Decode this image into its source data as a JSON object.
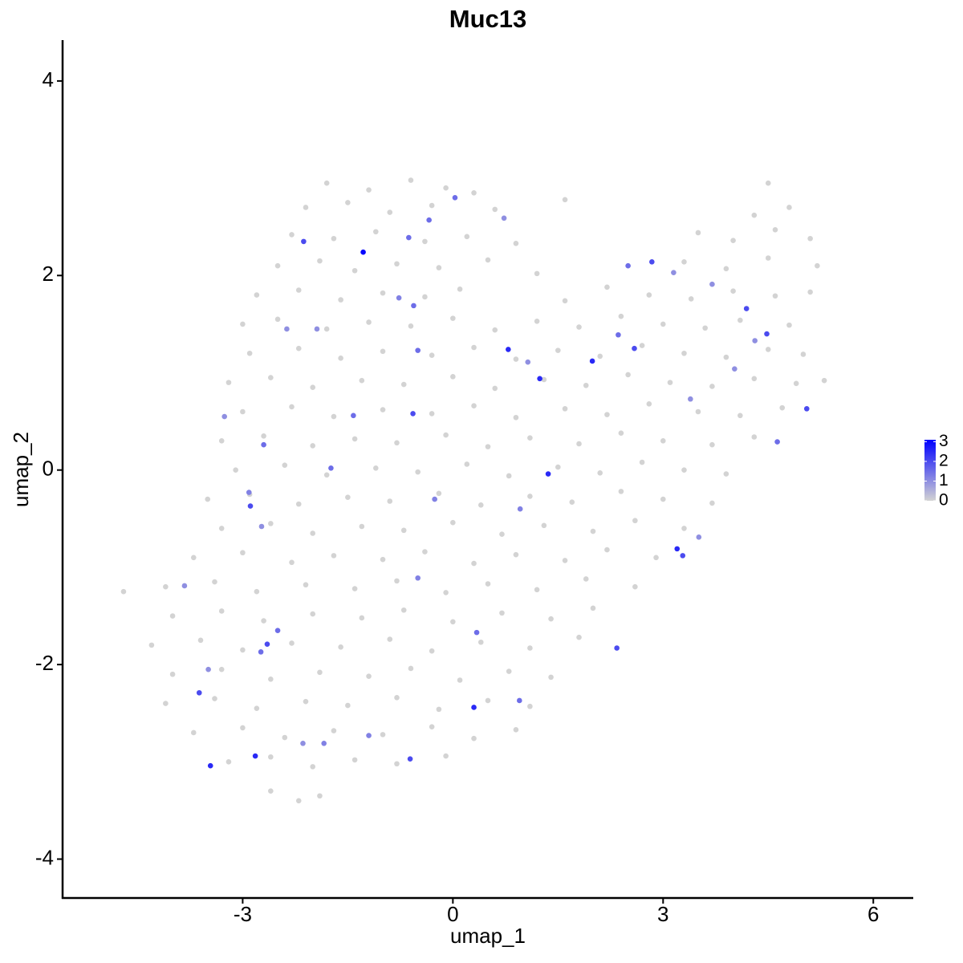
{
  "chart_data": {
    "type": "scatter",
    "title": "Muc13",
    "x_label": "umap_1",
    "y_label": "umap_2",
    "xlim": [
      -5.57,
      6.57
    ],
    "ylim": [
      -4.4,
      4.42
    ],
    "xticks": [
      -3,
      0,
      3,
      6
    ],
    "yticks": [
      -4,
      -2,
      0,
      2,
      4
    ],
    "color_low": "#d3d3d3",
    "color_high": "#0000ff",
    "color_lim": [
      0,
      3.1
    ],
    "colorbar_ticks": [
      0,
      1,
      2,
      3
    ],
    "x": [
      -1.8,
      -1.2,
      -0.6,
      -0.1,
      0.3,
      4.5,
      -2.1,
      -1.5,
      -0.9,
      -0.3,
      0.6,
      1.6,
      4.3,
      4.8,
      -2.3,
      -1.7,
      -1.1,
      -0.4,
      0.2,
      0.9,
      3.5,
      4.0,
      4.6,
      5.1,
      -2.5,
      -1.9,
      -1.4,
      -0.8,
      -0.2,
      0.5,
      1.2,
      3.3,
      3.9,
      4.5,
      5.2,
      -2.8,
      -2.2,
      -1.6,
      -1.0,
      -0.4,
      0.1,
      1.6,
      2.2,
      2.8,
      3.4,
      4.0,
      4.6,
      5.1,
      -3.0,
      -2.5,
      -1.8,
      -1.2,
      -0.6,
      0.0,
      0.6,
      1.2,
      1.8,
      2.4,
      3.0,
      3.6,
      4.1,
      4.8,
      -2.9,
      -2.2,
      -1.6,
      -1.0,
      -0.3,
      0.3,
      0.9,
      1.5,
      2.1,
      2.7,
      3.3,
      3.9,
      4.5,
      5.0,
      -3.2,
      -2.6,
      -2.0,
      -1.3,
      -0.7,
      0.0,
      0.6,
      1.3,
      1.9,
      2.5,
      3.1,
      3.7,
      4.3,
      4.9,
      5.3,
      -3.0,
      -2.3,
      -1.7,
      -1.0,
      -0.3,
      0.3,
      0.9,
      1.6,
      2.2,
      2.8,
      3.5,
      4.1,
      4.7,
      -3.3,
      -2.7,
      -2.0,
      -1.4,
      -0.8,
      -0.1,
      0.5,
      1.1,
      1.8,
      2.4,
      3.0,
      3.7,
      4.3,
      -3.1,
      -2.4,
      -1.8,
      -1.1,
      -0.5,
      0.2,
      0.8,
      1.5,
      2.1,
      2.7,
      3.3,
      3.9,
      -3.5,
      -2.9,
      -2.2,
      -1.5,
      -0.9,
      -0.2,
      0.4,
      1.1,
      1.7,
      2.4,
      3.0,
      3.7,
      -3.3,
      -2.6,
      -2.0,
      -1.3,
      -0.7,
      0.0,
      0.7,
      1.3,
      2.0,
      2.6,
      3.3,
      -3.7,
      -3.0,
      -2.3,
      -1.7,
      -1.0,
      -0.4,
      0.3,
      0.9,
      1.6,
      2.2,
      2.9,
      -4.7,
      -4.1,
      -3.4,
      -2.8,
      -2.1,
      -1.4,
      -0.8,
      -0.1,
      0.5,
      1.2,
      1.9,
      2.6,
      -4.0,
      -3.3,
      -2.7,
      -2.0,
      -1.3,
      -0.7,
      0.0,
      0.7,
      1.4,
      2.0,
      -4.3,
      -3.6,
      -3.0,
      -2.3,
      -1.6,
      -0.9,
      -0.3,
      0.4,
      1.1,
      1.8,
      -4.0,
      -3.3,
      -2.6,
      -1.9,
      -1.2,
      -0.6,
      0.1,
      0.8,
      1.4,
      -4.1,
      -3.4,
      -2.8,
      -2.1,
      -1.5,
      -0.8,
      -0.2,
      0.5,
      1.1,
      -3.7,
      -3.0,
      -2.4,
      -1.7,
      -1.0,
      -0.3,
      0.3,
      0.9,
      -3.2,
      -2.6,
      -2.0,
      -1.4,
      -0.8,
      -0.1,
      -2.6,
      -2.2,
      -1.9,
      -1.28,
      -2.13,
      0.03,
      -0.63,
      -0.34,
      2.5,
      2.84,
      3.15,
      4.19,
      4.48,
      0.79,
      1.99,
      1.24,
      2.59,
      2.36,
      5.05,
      4.63,
      -0.57,
      -1.42,
      -2.7,
      1.36,
      -1.74,
      -2.89,
      -2.91,
      -2.73,
      3.2,
      3.28,
      3.51,
      2.34,
      0.3,
      0.95,
      -2.65,
      -2.5,
      -2.74,
      -3.62,
      -3.46,
      -2.82,
      -0.61,
      -1.2,
      -1.84,
      -2.14,
      -3.49,
      -3.83,
      0.34,
      -0.5,
      -0.26,
      0.96,
      -0.77,
      -0.56,
      -0.5,
      1.07,
      0.73,
      -1.94,
      -2.37,
      3.39,
      4.02,
      4.31,
      3.7,
      -3.26
    ],
    "y": [
      2.95,
      2.88,
      2.98,
      2.9,
      2.85,
      2.95,
      2.7,
      2.75,
      2.65,
      2.72,
      2.68,
      2.78,
      2.62,
      2.7,
      2.42,
      2.38,
      2.45,
      2.35,
      2.4,
      2.33,
      2.44,
      2.36,
      2.47,
      2.38,
      2.1,
      2.15,
      2.05,
      2.12,
      2.08,
      2.16,
      2.02,
      2.14,
      2.07,
      2.18,
      2.1,
      1.8,
      1.85,
      1.75,
      1.82,
      1.78,
      1.86,
      1.74,
      1.88,
      1.8,
      1.76,
      1.84,
      1.79,
      1.83,
      1.5,
      1.55,
      1.45,
      1.52,
      1.48,
      1.56,
      1.44,
      1.53,
      1.47,
      1.58,
      1.5,
      1.46,
      1.54,
      1.49,
      1.2,
      1.25,
      1.15,
      1.22,
      1.18,
      1.26,
      1.14,
      1.23,
      1.17,
      1.28,
      1.2,
      1.16,
      1.24,
      1.19,
      0.9,
      0.95,
      0.85,
      0.92,
      0.88,
      0.96,
      0.84,
      0.93,
      0.87,
      0.98,
      0.9,
      0.86,
      0.94,
      0.89,
      0.92,
      0.6,
      0.65,
      0.55,
      0.62,
      0.58,
      0.66,
      0.54,
      0.63,
      0.57,
      0.68,
      0.6,
      0.56,
      0.64,
      0.3,
      0.35,
      0.25,
      0.32,
      0.28,
      0.36,
      0.24,
      0.33,
      0.27,
      0.38,
      0.3,
      0.26,
      0.34,
      0.0,
      0.05,
      -0.05,
      0.02,
      -0.02,
      0.06,
      -0.06,
      0.03,
      -0.03,
      0.08,
      0.0,
      -0.04,
      -0.3,
      -0.25,
      -0.35,
      -0.28,
      -0.32,
      -0.24,
      -0.36,
      -0.27,
      -0.33,
      -0.22,
      -0.3,
      -0.34,
      -0.6,
      -0.55,
      -0.65,
      -0.58,
      -0.62,
      -0.54,
      -0.66,
      -0.57,
      -0.63,
      -0.52,
      -0.6,
      -0.9,
      -0.85,
      -0.95,
      -0.88,
      -0.92,
      -0.84,
      -0.96,
      -0.87,
      -0.93,
      -0.82,
      -0.9,
      -1.25,
      -1.2,
      -1.15,
      -1.25,
      -1.18,
      -1.22,
      -1.14,
      -1.26,
      -1.17,
      -1.23,
      -1.12,
      -1.2,
      -1.5,
      -1.45,
      -1.55,
      -1.48,
      -1.52,
      -1.44,
      -1.56,
      -1.47,
      -1.53,
      -1.42,
      -1.8,
      -1.75,
      -1.85,
      -1.78,
      -1.82,
      -1.74,
      -1.86,
      -1.77,
      -1.83,
      -1.72,
      -2.1,
      -2.05,
      -2.15,
      -2.08,
      -2.12,
      -2.04,
      -2.16,
      -2.07,
      -2.13,
      -2.4,
      -2.35,
      -2.45,
      -2.38,
      -2.42,
      -2.34,
      -2.46,
      -2.37,
      -2.43,
      -2.7,
      -2.65,
      -2.75,
      -2.68,
      -2.72,
      -2.64,
      -2.76,
      -2.67,
      -3.0,
      -2.95,
      -3.05,
      -2.98,
      -3.02,
      -2.94,
      -3.3,
      -3.4,
      -3.35,
      2.24,
      2.35,
      2.8,
      2.39,
      2.57,
      2.1,
      2.14,
      2.03,
      1.66,
      1.4,
      1.24,
      1.12,
      0.94,
      1.25,
      1.39,
      0.63,
      0.29,
      0.58,
      0.56,
      0.26,
      -0.04,
      0.02,
      -0.37,
      -0.23,
      -0.58,
      -0.81,
      -0.88,
      -0.69,
      -1.83,
      -2.44,
      -2.37,
      -1.79,
      -1.65,
      -1.87,
      -2.29,
      -3.04,
      -2.94,
      -2.97,
      -2.73,
      -2.81,
      -2.81,
      -2.05,
      -1.19,
      -1.67,
      -1.11,
      -0.3,
      -0.4,
      1.77,
      1.69,
      1.23,
      1.11,
      2.59,
      1.45,
      1.45,
      0.73,
      1.04,
      1.33,
      1.91,
      0.55
    ],
    "values": [
      0,
      0,
      0,
      0,
      0,
      0,
      0,
      0,
      0,
      0,
      0,
      0,
      0,
      0,
      0,
      0,
      0,
      0,
      0,
      0,
      0,
      0,
      0,
      0,
      0,
      0,
      0,
      0,
      0,
      0,
      0,
      0,
      0,
      0,
      0,
      0,
      0,
      0,
      0,
      0,
      0,
      0,
      0,
      0,
      0,
      0,
      0,
      0,
      0,
      0,
      0,
      0,
      0,
      0,
      0,
      0,
      0,
      0,
      0,
      0,
      0,
      0,
      0,
      0,
      0,
      0,
      0,
      0,
      0,
      0,
      0,
      0,
      0,
      0,
      0,
      0,
      0,
      0,
      0,
      0,
      0,
      0,
      0,
      0,
      0,
      0,
      0,
      0,
      0,
      0,
      0,
      0,
      0,
      0,
      0,
      0,
      0,
      0,
      0,
      0,
      0,
      0,
      0,
      0,
      0,
      0,
      0,
      0,
      0,
      0,
      0,
      0,
      0,
      0,
      0,
      0,
      0,
      0,
      0,
      0,
      0,
      0,
      0,
      0,
      0,
      0,
      0,
      0,
      0,
      0,
      0,
      0,
      0,
      0,
      0,
      0,
      0,
      0,
      0,
      0,
      0,
      0,
      0,
      0,
      0,
      0,
      0,
      0,
      0,
      0,
      0,
      0,
      0,
      0,
      0,
      0,
      0,
      0,
      0,
      0,
      0,
      0,
      0,
      0,
      0,
      0,
      0,
      0,
      0,
      0,
      0,
      0,
      0,
      0,
      0,
      0,
      0,
      0,
      0,
      0,
      0,
      0,
      0,
      0,
      0,
      0,
      0,
      0,
      0,
      0,
      0,
      0,
      0,
      0,
      0,
      0,
      0,
      0,
      0,
      0,
      0,
      0,
      0,
      0,
      0,
      0,
      0,
      0,
      0,
      0,
      0,
      0,
      0,
      0,
      0,
      0,
      0,
      0,
      0,
      0,
      0,
      0,
      0,
      0,
      0,
      0,
      0,
      0,
      0,
      0,
      3,
      2,
      1.5,
      1.5,
      1.5,
      1.5,
      2,
      1,
      2,
      2,
      2.5,
      2.5,
      2.5,
      2,
      1.5,
      2,
      1.5,
      2,
      1.5,
      1.5,
      2.5,
      1.5,
      2,
      1.2,
      1,
      2.5,
      2,
      1,
      2,
      2.5,
      1.5,
      2,
      1.5,
      1.5,
      2,
      2.5,
      2.5,
      2,
      1.2,
      1.2,
      1,
      1,
      1,
      1.5,
      1.2,
      1.2,
      1.2,
      1.2,
      1.5,
      1.5,
      1,
      1,
      1,
      1,
      1,
      1,
      1,
      1,
      1
    ]
  }
}
